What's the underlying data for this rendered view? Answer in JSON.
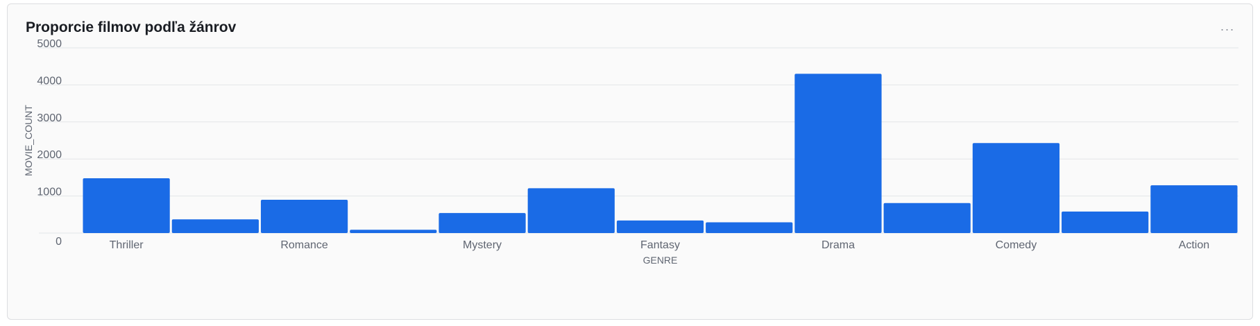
{
  "card": {
    "title": "Proporcie filmov podľa žánrov",
    "menu_icon": "more-horizontal-icon",
    "menu_glyph": "···"
  },
  "chart_data": {
    "type": "bar",
    "title": "Proporcie filmov podľa žánrov",
    "xlabel": "GENRE",
    "ylabel": "MOVIE_COUNT",
    "ylim": [
      0,
      5000
    ],
    "yticks": [
      0,
      1000,
      2000,
      3000,
      4000,
      5000
    ],
    "grid": true,
    "legend": "none",
    "bar_color": "#1a6be6",
    "categories": [
      "Thriller",
      "",
      "Romance",
      "",
      "Mystery",
      "",
      "Fantasy",
      "",
      "Drama",
      "",
      "Comedy",
      "",
      "Action"
    ],
    "values": [
      1480,
      370,
      900,
      90,
      540,
      1210,
      340,
      290,
      4300,
      810,
      2430,
      580,
      1290
    ]
  }
}
